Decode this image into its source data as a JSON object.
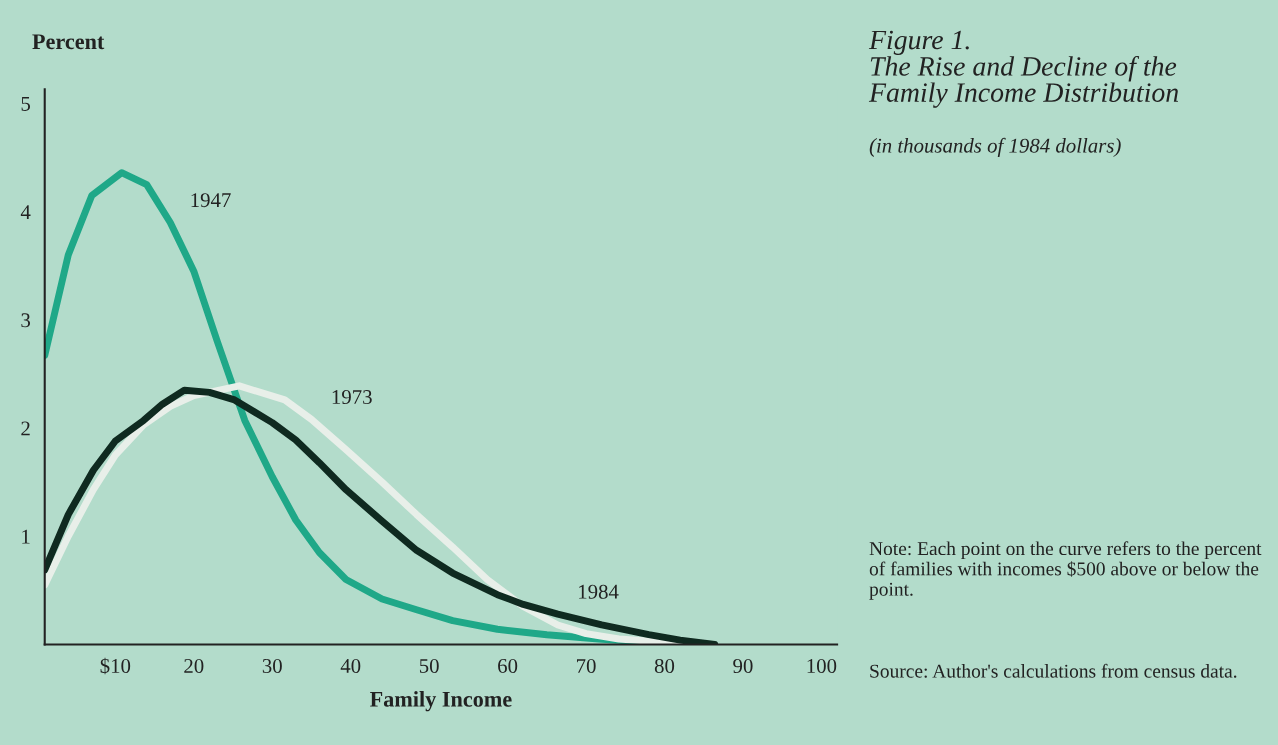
{
  "chart_data": {
    "type": "line",
    "title": "Figure 1.\nThe Rise and Decline of the\nFamily Income Distribution",
    "subtitle": "(in thousands of 1984 dollars)",
    "xlabel": "Family Income",
    "ylabel": "Percent",
    "xlim": [
      1,
      102
    ],
    "ylim": [
      0,
      5.13
    ],
    "xticks": [
      {
        "value": 10,
        "label": "$10"
      },
      20,
      30,
      40,
      50,
      60,
      70,
      80,
      90,
      100
    ],
    "yticks": [
      1,
      2,
      3,
      4,
      5
    ],
    "grid": false,
    "legend": false,
    "line_style": "solid",
    "marker": "none",
    "annotations": [
      "Note: Each point on the curve refers to the percent of families with incomes $500 above or below the point.",
      "Source: Author's calculations from census data."
    ],
    "series": [
      {
        "name": "1947",
        "color": "#1fa888",
        "x": [
          1,
          4,
          7,
          10.8,
          14,
          17,
          20,
          23,
          26.5,
          30,
          33,
          36,
          39.4,
          44,
          48.4,
          53,
          58.7,
          65,
          71.6,
          78,
          84.5
        ],
        "values": [
          2.67,
          3.6,
          4.15,
          4.36,
          4.25,
          3.9,
          3.45,
          2.8,
          2.07,
          1.55,
          1.15,
          0.85,
          0.6,
          0.42,
          0.32,
          0.22,
          0.14,
          0.09,
          0.05,
          0.02,
          0
        ]
      },
      {
        "name": "1973",
        "color": "#e8efe9",
        "x": [
          1,
          4,
          7.2,
          10,
          13.6,
          17,
          20,
          25.8,
          31.6,
          35,
          39.4,
          44,
          48.4,
          53,
          57.4,
          62,
          66.4,
          70,
          74.2,
          80,
          84.5
        ],
        "values": [
          0.55,
          1.0,
          1.43,
          1.75,
          2.03,
          2.2,
          2.3,
          2.39,
          2.26,
          2.08,
          1.8,
          1.5,
          1.2,
          0.9,
          0.6,
          0.35,
          0.18,
          0.1,
          0.05,
          0.02,
          0
        ]
      },
      {
        "name": "1984",
        "color": "#0f2a20",
        "x": [
          1,
          4,
          7.2,
          10,
          13.6,
          16,
          18.8,
          22,
          25.2,
          30,
          33,
          36,
          39.4,
          44,
          48.4,
          53,
          58.7,
          62,
          66.4,
          72,
          78,
          82,
          86.4
        ],
        "values": [
          0.69,
          1.2,
          1.61,
          1.88,
          2.07,
          2.22,
          2.35,
          2.33,
          2.26,
          2.05,
          1.89,
          1.68,
          1.43,
          1.14,
          0.87,
          0.66,
          0.46,
          0.37,
          0.28,
          0.18,
          0.09,
          0.04,
          0
        ]
      }
    ]
  }
}
